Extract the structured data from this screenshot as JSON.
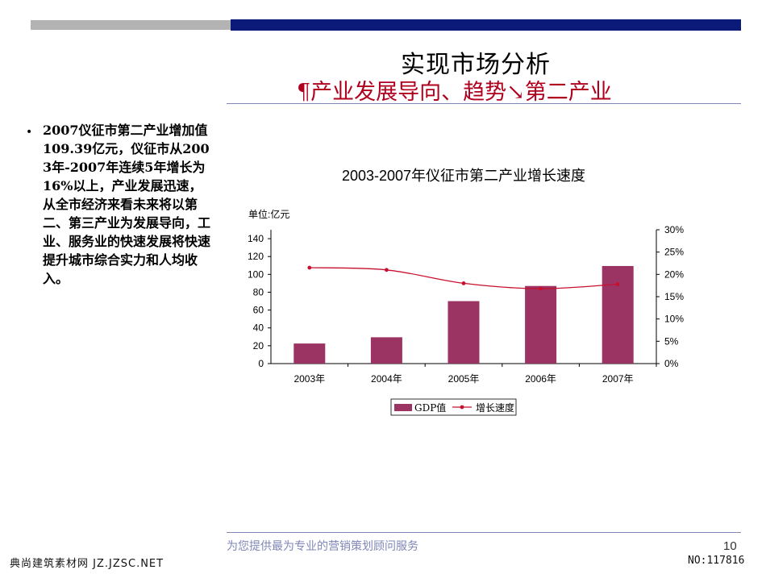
{
  "slide": {
    "title": "实现市场分析",
    "subtitle": "¶产业发展导向、趋势↘第二产业",
    "bullet": "2007仪征市第二产业增加值109.39亿元，仪征市从2003年-2007年连续5年增长为16%以上，产业发展迅速，从全市经济来看未来将以第二、第三产业为发展导向，工业、服务业的快速发展将快速提升城市综合实力和人均收入。",
    "footer": "为您提供最为专业的营销策划顾问服务",
    "page_number": "10"
  },
  "watermark": {
    "left": "典尚建筑素材网 JZ.JZSC.NET",
    "right": "NO:117816"
  },
  "colors": {
    "bar": "#9b3363",
    "line": "#c8102e",
    "header_navy": "#0b1a78",
    "header_gray": "#b3b3b3",
    "rule": "#7f87b8"
  },
  "chart_data": {
    "type": "bar",
    "title": "2003-2007年仪征市第二产业增长速度",
    "unit_label": "单位:亿元",
    "categories": [
      "2003年",
      "2004年",
      "2005年",
      "2006年",
      "2007年"
    ],
    "series": [
      {
        "name": "GDP值",
        "type": "bar",
        "axis": "left",
        "values": [
          22.5,
          29.5,
          70,
          87,
          109.39
        ]
      },
      {
        "name": "增长速度",
        "type": "line",
        "axis": "right",
        "values": [
          0.215,
          0.21,
          0.18,
          0.168,
          0.178
        ]
      }
    ],
    "y_left": {
      "min": 0,
      "max": 150,
      "ticks": [
        0,
        20,
        40,
        60,
        80,
        100,
        120,
        140
      ]
    },
    "y_right": {
      "min": 0,
      "max": 0.3,
      "ticks": [
        "0%",
        "5%",
        "10%",
        "15%",
        "20%",
        "25%",
        "30%"
      ]
    },
    "legend": "bottom",
    "grid": false
  }
}
